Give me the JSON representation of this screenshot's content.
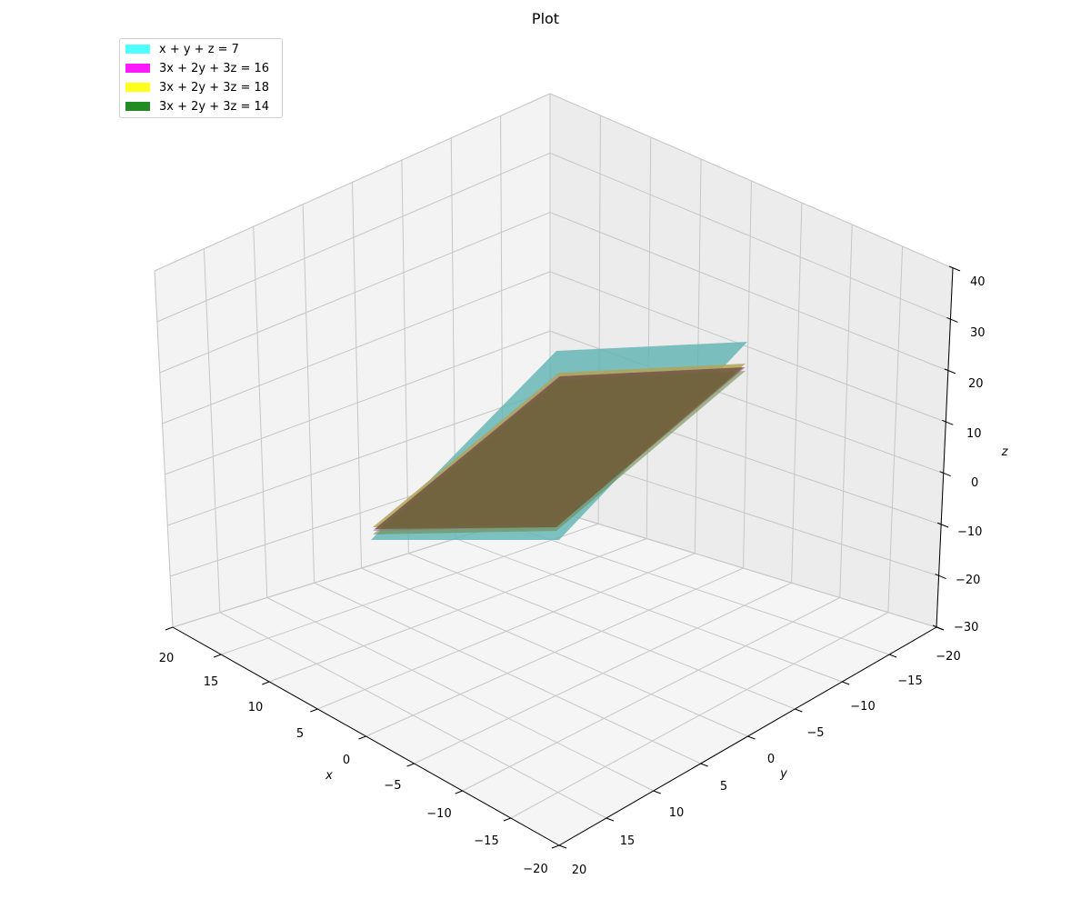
{
  "chart_data": {
    "type": "surface3d",
    "title": "Plot",
    "xlabel": "x",
    "ylabel": "y",
    "zlabel": "z",
    "xlim": [
      -20,
      20
    ],
    "ylim": [
      -20,
      20
    ],
    "zlim": [
      -30,
      40
    ],
    "x_ticks": [
      "20",
      "15",
      "10",
      "5",
      "0",
      "−5",
      "−10",
      "−15",
      "−20"
    ],
    "y_ticks": [
      "−20",
      "−15",
      "−10",
      "−5",
      "0",
      "5",
      "10",
      "15",
      "20"
    ],
    "z_ticks": [
      "40",
      "30",
      "20",
      "10",
      "0",
      "−10",
      "−20",
      "−30"
    ],
    "legend_position": "upper-left",
    "series": [
      {
        "name": "x + y + z = 7",
        "color": "#4dffff"
      },
      {
        "name": "3x + 2y + 3z = 16",
        "color": "#ff19ff"
      },
      {
        "name": "3x + 2y + 3z = 18",
        "color": "#ffff19"
      },
      {
        "name": "3x + 2y + 3z = 14",
        "color": "#228b22"
      }
    ]
  }
}
